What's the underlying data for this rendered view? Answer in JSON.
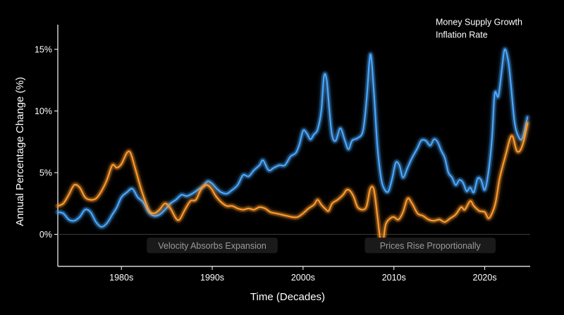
{
  "chart_data": {
    "type": "line",
    "xlabel": "Time (Decades)",
    "ylabel": "Annual Percentage Change (%)",
    "xlim": [
      1973,
      2025
    ],
    "ylim": [
      -2.6,
      17.0
    ],
    "x_ticks": [
      1980,
      1990,
      2000,
      2010,
      2020
    ],
    "x_tick_labels": [
      "1980s",
      "1990s",
      "2000s",
      "2010s",
      "2020s"
    ],
    "y_ticks": [
      0,
      5,
      10,
      15
    ],
    "y_tick_labels": [
      "0%",
      "5%",
      "10%",
      "15%"
    ],
    "zero_line": true,
    "grid": false,
    "legend_position": "top-right",
    "series": [
      {
        "name": "Money Supply Growth",
        "color": "#4aa8ff",
        "points": [
          [
            1973.0,
            1.8
          ],
          [
            1973.6,
            1.7
          ],
          [
            1974.2,
            1.2
          ],
          [
            1974.8,
            1.1
          ],
          [
            1975.4,
            1.4
          ],
          [
            1976.0,
            2.0
          ],
          [
            1976.6,
            1.8
          ],
          [
            1977.2,
            1.0
          ],
          [
            1977.8,
            0.6
          ],
          [
            1978.4,
            0.9
          ],
          [
            1979.0,
            1.6
          ],
          [
            1979.5,
            2.2
          ],
          [
            1980.0,
            3.0
          ],
          [
            1980.6,
            3.4
          ],
          [
            1981.2,
            3.7
          ],
          [
            1981.8,
            3.0
          ],
          [
            1982.4,
            2.6
          ],
          [
            1983.0,
            1.8
          ],
          [
            1983.6,
            1.5
          ],
          [
            1984.2,
            1.6
          ],
          [
            1984.8,
            2.0
          ],
          [
            1985.4,
            2.5
          ],
          [
            1986.0,
            2.8
          ],
          [
            1986.6,
            3.2
          ],
          [
            1987.2,
            3.1
          ],
          [
            1987.8,
            3.3
          ],
          [
            1988.4,
            3.6
          ],
          [
            1989.0,
            3.9
          ],
          [
            1989.5,
            4.3
          ],
          [
            1990.0,
            4.1
          ],
          [
            1990.5,
            3.7
          ],
          [
            1991.0,
            3.4
          ],
          [
            1991.6,
            3.3
          ],
          [
            1992.2,
            3.6
          ],
          [
            1992.8,
            4.0
          ],
          [
            1993.4,
            4.8
          ],
          [
            1994.0,
            4.7
          ],
          [
            1994.6,
            5.2
          ],
          [
            1995.2,
            5.6
          ],
          [
            1995.6,
            6.0
          ],
          [
            1996.2,
            5.2
          ],
          [
            1996.8,
            5.4
          ],
          [
            1997.4,
            5.6
          ],
          [
            1998.0,
            5.6
          ],
          [
            1998.6,
            6.3
          ],
          [
            1999.2,
            6.6
          ],
          [
            1999.6,
            7.3
          ],
          [
            2000.0,
            8.4
          ],
          [
            2000.4,
            8.2
          ],
          [
            2000.8,
            7.7
          ],
          [
            2001.2,
            8.1
          ],
          [
            2001.6,
            8.5
          ],
          [
            2002.0,
            10.0
          ],
          [
            2002.3,
            12.8
          ],
          [
            2002.6,
            12.5
          ],
          [
            2002.9,
            10.0
          ],
          [
            2003.2,
            8.0
          ],
          [
            2003.6,
            7.6
          ],
          [
            2004.1,
            8.6
          ],
          [
            2004.6,
            7.6
          ],
          [
            2005.0,
            6.9
          ],
          [
            2005.4,
            7.6
          ],
          [
            2006.0,
            7.8
          ],
          [
            2006.6,
            8.4
          ],
          [
            2007.0,
            11.0
          ],
          [
            2007.3,
            14.0
          ],
          [
            2007.5,
            14.4
          ],
          [
            2007.8,
            11.5
          ],
          [
            2008.2,
            7.0
          ],
          [
            2008.6,
            4.5
          ],
          [
            2009.0,
            3.6
          ],
          [
            2009.4,
            3.5
          ],
          [
            2009.8,
            4.5
          ],
          [
            2010.2,
            5.8
          ],
          [
            2010.6,
            5.6
          ],
          [
            2011.0,
            4.6
          ],
          [
            2011.5,
            5.4
          ],
          [
            2012.0,
            6.2
          ],
          [
            2012.6,
            7.0
          ],
          [
            2013.0,
            7.6
          ],
          [
            2013.5,
            7.6
          ],
          [
            2014.0,
            7.2
          ],
          [
            2014.4,
            7.7
          ],
          [
            2014.8,
            7.5
          ],
          [
            2015.2,
            6.8
          ],
          [
            2015.6,
            6.2
          ],
          [
            2016.0,
            5.0
          ],
          [
            2016.4,
            4.6
          ],
          [
            2016.8,
            4.0
          ],
          [
            2017.2,
            4.4
          ],
          [
            2017.6,
            4.2
          ],
          [
            2018.0,
            3.5
          ],
          [
            2018.4,
            3.8
          ],
          [
            2018.8,
            3.4
          ],
          [
            2019.2,
            4.5
          ],
          [
            2019.6,
            4.4
          ],
          [
            2020.0,
            3.6
          ],
          [
            2020.4,
            5.0
          ],
          [
            2020.8,
            7.8
          ],
          [
            2021.1,
            11.4
          ],
          [
            2021.5,
            11.2
          ],
          [
            2021.9,
            13.5
          ],
          [
            2022.2,
            15.0
          ],
          [
            2022.6,
            14.0
          ],
          [
            2022.9,
            12.0
          ],
          [
            2023.3,
            9.0
          ],
          [
            2023.8,
            7.8
          ],
          [
            2024.2,
            7.9
          ],
          [
            2024.7,
            9.5
          ]
        ]
      },
      {
        "name": "Inflation Rate",
        "color": "#ff9a2e",
        "points": [
          [
            1973.0,
            2.3
          ],
          [
            1973.6,
            2.5
          ],
          [
            1974.2,
            3.2
          ],
          [
            1974.8,
            4.0
          ],
          [
            1975.4,
            3.8
          ],
          [
            1976.0,
            3.0
          ],
          [
            1976.6,
            2.8
          ],
          [
            1977.2,
            2.9
          ],
          [
            1977.8,
            3.5
          ],
          [
            1978.4,
            4.4
          ],
          [
            1979.0,
            5.6
          ],
          [
            1979.5,
            5.4
          ],
          [
            1980.0,
            5.7
          ],
          [
            1980.6,
            6.6
          ],
          [
            1981.0,
            6.6
          ],
          [
            1981.5,
            5.4
          ],
          [
            1982.2,
            3.6
          ],
          [
            1983.0,
            2.0
          ],
          [
            1983.6,
            1.7
          ],
          [
            1984.2,
            2.0
          ],
          [
            1984.8,
            2.5
          ],
          [
            1985.4,
            2.1
          ],
          [
            1986.0,
            1.3
          ],
          [
            1986.4,
            1.2
          ],
          [
            1987.0,
            2.0
          ],
          [
            1987.6,
            2.7
          ],
          [
            1988.2,
            2.8
          ],
          [
            1988.8,
            3.7
          ],
          [
            1989.4,
            4.0
          ],
          [
            1989.9,
            3.7
          ],
          [
            1990.4,
            3.1
          ],
          [
            1991.0,
            2.6
          ],
          [
            1991.6,
            2.3
          ],
          [
            1992.2,
            2.3
          ],
          [
            1992.8,
            2.1
          ],
          [
            1993.4,
            2.0
          ],
          [
            1994.0,
            2.1
          ],
          [
            1994.6,
            2.0
          ],
          [
            1995.2,
            2.2
          ],
          [
            1995.8,
            2.1
          ],
          [
            1996.4,
            1.8
          ],
          [
            1997.0,
            1.7
          ],
          [
            1997.6,
            1.6
          ],
          [
            1998.2,
            1.5
          ],
          [
            1998.8,
            1.4
          ],
          [
            1999.4,
            1.4
          ],
          [
            2000.0,
            1.7
          ],
          [
            2000.6,
            2.1
          ],
          [
            2001.2,
            2.4
          ],
          [
            2001.6,
            2.8
          ],
          [
            2002.0,
            2.4
          ],
          [
            2002.4,
            2.1
          ],
          [
            2002.8,
            1.9
          ],
          [
            2003.2,
            2.5
          ],
          [
            2003.8,
            2.8
          ],
          [
            2004.4,
            3.2
          ],
          [
            2004.8,
            3.6
          ],
          [
            2005.2,
            3.5
          ],
          [
            2005.6,
            3.0
          ],
          [
            2006.0,
            2.2
          ],
          [
            2006.6,
            2.0
          ],
          [
            2007.0,
            2.3
          ],
          [
            2007.4,
            3.7
          ],
          [
            2007.8,
            3.6
          ],
          [
            2008.2,
            1.4
          ],
          [
            2008.5,
            -0.4
          ],
          [
            2008.8,
            -0.6
          ],
          [
            2009.1,
            0.8
          ],
          [
            2009.6,
            1.3
          ],
          [
            2010.0,
            1.4
          ],
          [
            2010.5,
            1.2
          ],
          [
            2011.0,
            1.8
          ],
          [
            2011.5,
            2.9
          ],
          [
            2012.0,
            2.5
          ],
          [
            2012.6,
            1.7
          ],
          [
            2013.2,
            1.5
          ],
          [
            2013.8,
            1.2
          ],
          [
            2014.4,
            1.1
          ],
          [
            2015.0,
            1.2
          ],
          [
            2015.6,
            1.0
          ],
          [
            2016.2,
            1.3
          ],
          [
            2016.8,
            1.6
          ],
          [
            2017.4,
            2.2
          ],
          [
            2017.8,
            2.0
          ],
          [
            2018.4,
            2.7
          ],
          [
            2018.8,
            2.3
          ],
          [
            2019.4,
            1.9
          ],
          [
            2020.0,
            1.8
          ],
          [
            2020.4,
            1.3
          ],
          [
            2020.8,
            1.7
          ],
          [
            2021.2,
            2.6
          ],
          [
            2021.6,
            4.4
          ],
          [
            2022.0,
            5.6
          ],
          [
            2022.4,
            6.7
          ],
          [
            2022.8,
            7.8
          ],
          [
            2023.1,
            7.9
          ],
          [
            2023.5,
            6.8
          ],
          [
            2023.9,
            6.8
          ],
          [
            2024.3,
            7.6
          ],
          [
            2024.7,
            9.0
          ]
        ]
      }
    ],
    "annotations": [
      {
        "text": "Velocity Absorbs Expansion",
        "x": 1990.0,
        "y": -0.9
      },
      {
        "text": "Prices Rise Proportionally",
        "x": 2014.0,
        "y": -0.9
      }
    ]
  }
}
